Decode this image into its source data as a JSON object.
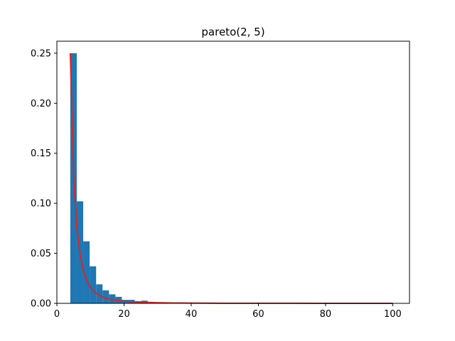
{
  "chart_data": {
    "type": "bar",
    "title": "pareto(2, 5)",
    "xlabel": "",
    "ylabel": "",
    "xlim": [
      0,
      105
    ],
    "ylim": [
      0,
      0.262
    ],
    "xticks": [
      0,
      20,
      40,
      60,
      80,
      100
    ],
    "xtick_labels": [
      "0",
      "20",
      "40",
      "60",
      "80",
      "100"
    ],
    "yticks": [
      0.0,
      0.05,
      0.1,
      0.15,
      0.2,
      0.25
    ],
    "ytick_labels": [
      "0.00",
      "0.05",
      "0.10",
      "0.15",
      "0.20",
      "0.25"
    ],
    "histogram": {
      "bin_width": 1.92,
      "bin_edges_start": 4,
      "values": [
        0.25,
        0.102,
        0.062,
        0.037,
        0.019,
        0.013,
        0.009,
        0.0065,
        0.0035,
        0.0035,
        0.0022,
        0.0027,
        0.0015,
        0.001,
        0.0008,
        0.0007,
        0.0004,
        0.0004,
        0.0003,
        0.0003,
        0.0003,
        0.0003,
        0.0006,
        0.0003,
        0.0003,
        0.0002,
        0.0002,
        0.0001,
        0.0002,
        0.0001,
        0.0001,
        0.0001,
        0.0002,
        0.0001,
        0.0001,
        0.0001,
        0.0,
        0.0001,
        0.0001,
        0.0001,
        0.0,
        0.0001,
        0.0001,
        0.0,
        0.0001,
        0.0,
        0.0001,
        0.0,
        0.0001,
        0.0001
      ],
      "color": "#1f77b4"
    },
    "series": [
      {
        "type": "line",
        "color": "#d62728",
        "x": [
          4,
          5,
          6,
          7,
          8,
          9,
          10,
          11,
          12,
          13,
          14,
          15,
          16,
          17,
          18,
          20,
          22,
          25,
          30,
          35,
          40,
          50,
          60,
          70,
          80,
          90,
          100
        ],
        "y": [
          0.25,
          0.128,
          0.0741,
          0.0466,
          0.03125,
          0.02195,
          0.016,
          0.01202,
          0.00926,
          0.00728,
          0.00583,
          0.00474,
          0.00391,
          0.00326,
          0.00274,
          0.002,
          0.0015,
          0.00102,
          0.00059,
          0.00037,
          0.00025,
          0.000128,
          7.4e-05,
          4.7e-05,
          3.1e-05,
          2.2e-05,
          1.6e-05
        ]
      }
    ],
    "grid": false,
    "legend": "none"
  }
}
